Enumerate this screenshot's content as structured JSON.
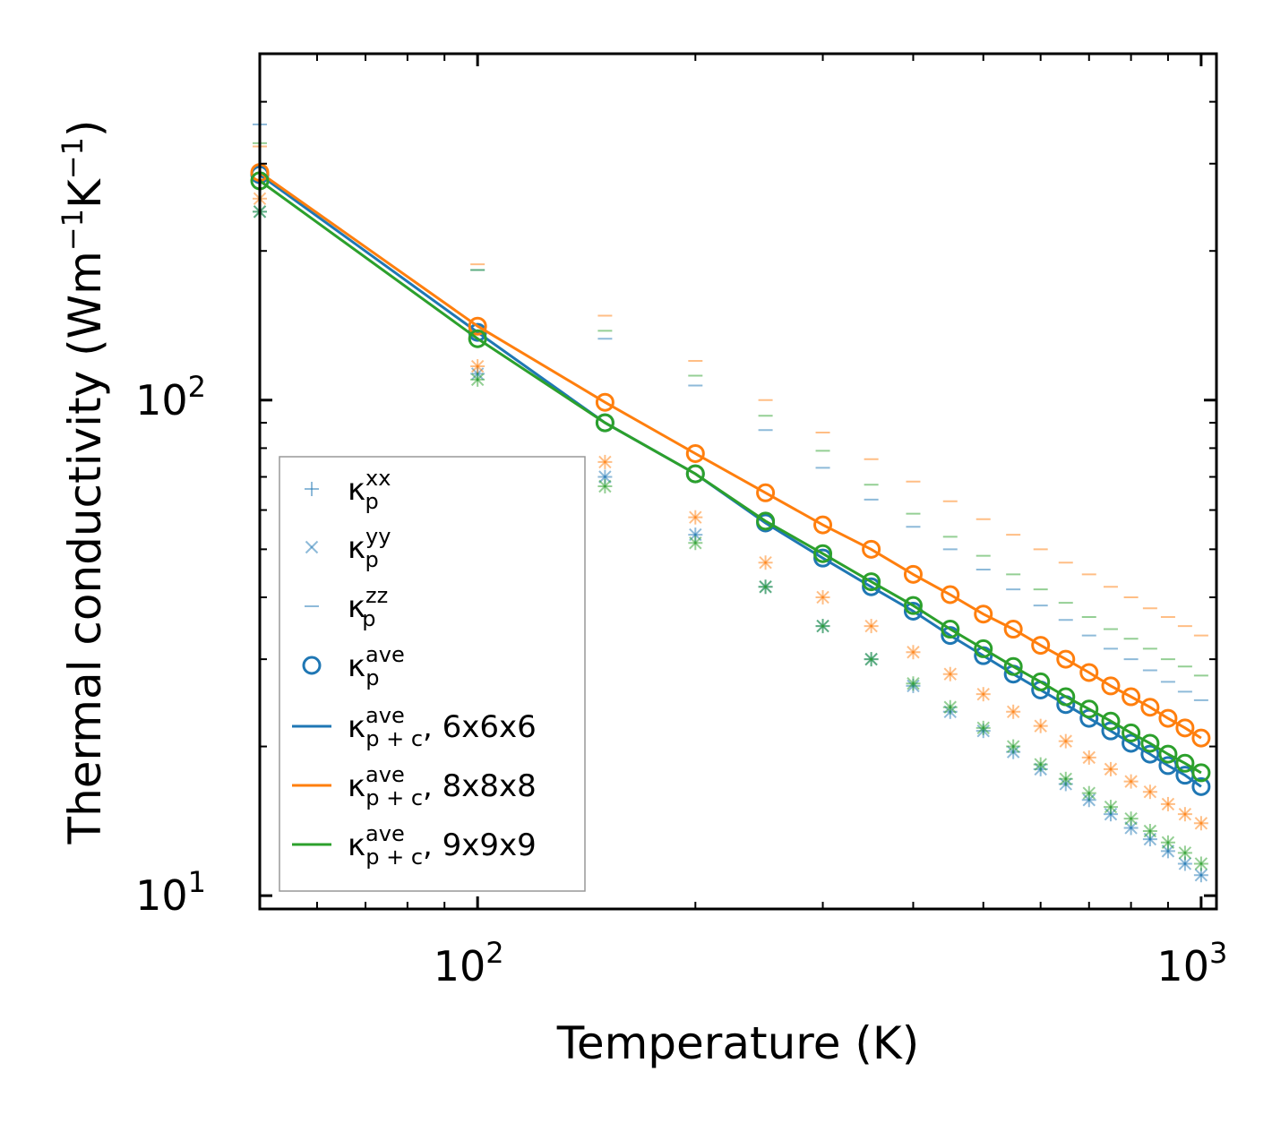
{
  "chart_data": {
    "type": "scatter",
    "xscale": "log",
    "yscale": "log",
    "xlabel": "Temperature (K)",
    "ylabel_main": "Thermal conductivity (Wm",
    "ylabel_tail": "K",
    "ylabel_close": ")",
    "ylabel_exp": "−1",
    "xlim": [
      50,
      1050
    ],
    "ylim": [
      9.4,
      500
    ],
    "x_ticks": [
      {
        "base": "10",
        "exp": "2",
        "value": 100
      },
      {
        "base": "10",
        "exp": "3",
        "value": 1000
      }
    ],
    "y_ticks": [
      {
        "base": "10",
        "exp": "1",
        "value": 10
      },
      {
        "base": "10",
        "exp": "2",
        "value": 100
      }
    ],
    "temperatures": [
      50,
      100,
      150,
      200,
      250,
      300,
      350,
      400,
      450,
      500,
      550,
      600,
      650,
      700,
      750,
      800,
      850,
      900,
      950,
      1000
    ],
    "series": [
      {
        "name": "6x6x6",
        "color": "#1f77b4",
        "kxx": [
          240,
          113,
          70,
          53.5,
          42,
          35,
          30,
          26.5,
          23.5,
          21.5,
          19.5,
          18,
          16.8,
          15.6,
          14.6,
          13.7,
          13,
          12.3,
          11.6,
          11
        ],
        "kyy": [
          240,
          113,
          70,
          53.5,
          42,
          35,
          30,
          26.5,
          23.5,
          21.5,
          19.5,
          18,
          16.8,
          15.6,
          14.6,
          13.7,
          13,
          12.3,
          11.6,
          11
        ],
        "kzz": [
          360,
          183,
          133,
          107,
          87,
          73,
          63,
          55.5,
          50,
          45.5,
          41.5,
          38.5,
          36,
          33.5,
          31.5,
          30,
          28.5,
          27,
          25.8,
          24.8
        ],
        "kave": [
          285,
          137,
          90,
          71,
          56.5,
          48,
          42,
          37.5,
          33.5,
          30.5,
          28,
          26,
          24.3,
          22.8,
          21.5,
          20.3,
          19.3,
          18.3,
          17.5,
          16.6
        ]
      },
      {
        "name": "8x8x8",
        "color": "#ff7f0e",
        "kxx": [
          255,
          117,
          75,
          58,
          47,
          40,
          35,
          31,
          28,
          25.5,
          23.5,
          22,
          20.5,
          19,
          18,
          17,
          16.2,
          15.3,
          14.6,
          14
        ],
        "kyy": [
          255,
          117,
          75,
          58,
          47,
          40,
          35,
          31,
          28,
          25.5,
          23.5,
          22,
          20.5,
          19,
          18,
          17,
          16.2,
          15.3,
          14.6,
          14
        ],
        "kzz": [
          325,
          188,
          148,
          120,
          100,
          86,
          76,
          68.5,
          62.5,
          57.5,
          53.5,
          50,
          47,
          44.5,
          42,
          40,
          38,
          36.5,
          35,
          33.5
        ],
        "kave": [
          288,
          141,
          99,
          78,
          65,
          56,
          50,
          44.5,
          40.5,
          37,
          34.5,
          32,
          30,
          28.2,
          26.5,
          25.2,
          24,
          22.8,
          21.8,
          20.8
        ]
      },
      {
        "name": "9x9x9",
        "color": "#2ca02c",
        "kxx": [
          240,
          110,
          67,
          51.5,
          42,
          35,
          30,
          26.8,
          24,
          21.8,
          20,
          18.4,
          17.2,
          16.1,
          15.1,
          14.3,
          13.5,
          12.8,
          12.2,
          11.6
        ],
        "kyy": [
          240,
          110,
          67,
          51.5,
          42,
          35,
          30,
          26.8,
          24,
          21.8,
          20,
          18.4,
          17.2,
          16.1,
          15.1,
          14.3,
          13.5,
          12.8,
          12.2,
          11.6
        ],
        "kzz": [
          330,
          183,
          138,
          112,
          93,
          79,
          67.5,
          59,
          53,
          48.5,
          44.5,
          41.5,
          39,
          36.5,
          34.5,
          33,
          31.5,
          30,
          29,
          27.8
        ],
        "kave": [
          277,
          133,
          90,
          71,
          57,
          49,
          43,
          38.5,
          34.5,
          31.5,
          29,
          27,
          25.2,
          23.8,
          22.5,
          21.3,
          20.3,
          19.3,
          18.5,
          17.7
        ]
      }
    ],
    "legend": {
      "location": "lower-left",
      "entries": [
        {
          "marker": "plus",
          "symbol": "κ",
          "sub": "p",
          "sup": "xx",
          "text": ""
        },
        {
          "marker": "x",
          "symbol": "κ",
          "sub": "p",
          "sup": "yy",
          "text": ""
        },
        {
          "marker": "dash",
          "symbol": "κ",
          "sub": "p",
          "sup": "zz",
          "text": ""
        },
        {
          "marker": "circle",
          "symbol": "κ",
          "sub": "p",
          "sup": "ave",
          "text": ""
        },
        {
          "marker": "line",
          "series": 0,
          "symbol": "κ",
          "sub": "p + c",
          "sup": "ave",
          "text": ", 6x6x6"
        },
        {
          "marker": "line",
          "series": 1,
          "symbol": "κ",
          "sub": "p + c",
          "sup": "ave",
          "text": ", 8x8x8"
        },
        {
          "marker": "line",
          "series": 2,
          "symbol": "κ",
          "sub": "p + c",
          "sup": "ave",
          "text": ", 9x9x9"
        }
      ]
    }
  }
}
